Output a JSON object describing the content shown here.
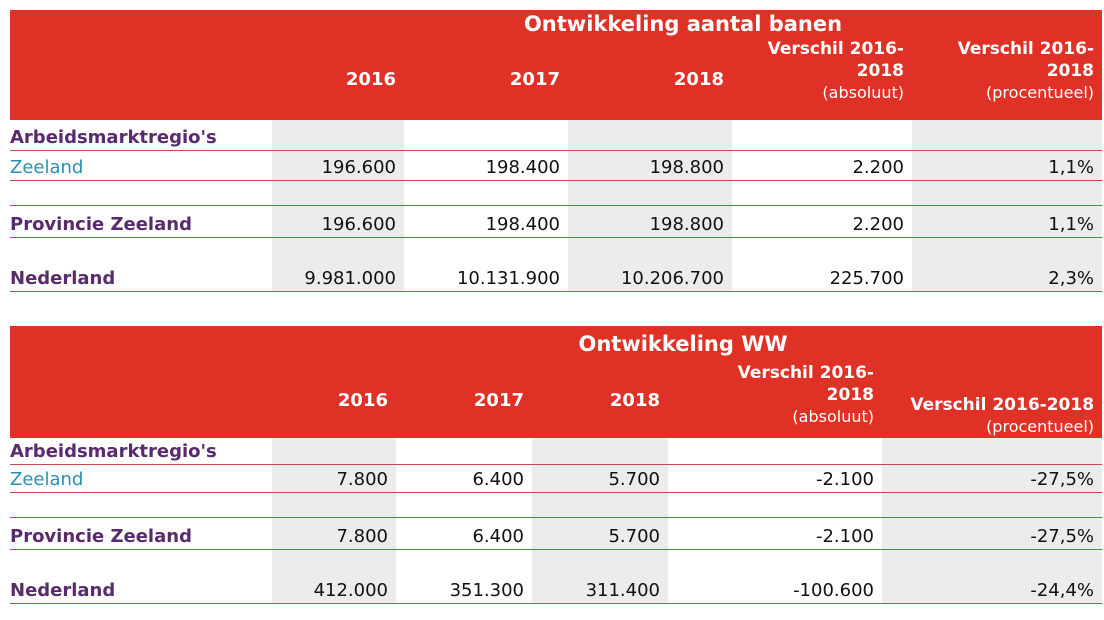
{
  "tables": [
    {
      "title": "Ontwikkeling aantal banen",
      "headers": {
        "y2016": "2016",
        "y2017": "2017",
        "y2018": "2018",
        "abs_line1": "Verschil 2016-",
        "abs_line2": "2018",
        "abs_line3": "(absoluut)",
        "pct_line1": "Verschil 2016-",
        "pct_line2": "2018",
        "pct_line3": "(procentueel)"
      },
      "section_label": "Arbeidsmarktregio's",
      "rows": [
        {
          "label": "Zeeland",
          "v2016": "196.600",
          "v2017": "198.400",
          "v2018": "198.800",
          "abs": "2.200",
          "pct": "1,1%"
        },
        {
          "label": "Provincie Zeeland",
          "v2016": "196.600",
          "v2017": "198.400",
          "v2018": "198.800",
          "abs": "2.200",
          "pct": "1,1%"
        },
        {
          "label": "Nederland",
          "v2016": "9.981.000",
          "v2017": "10.131.900",
          "v2018": "10.206.700",
          "abs": "225.700",
          "pct": "2,3%"
        }
      ]
    },
    {
      "title": "Ontwikkeling WW",
      "headers": {
        "y2016": "2016",
        "y2017": "2017",
        "y2018": "2018",
        "abs_line1": "Verschil 2016-",
        "abs_line2": "2018",
        "abs_line3": "(absoluut)",
        "pct_line1": "",
        "pct_line2": "Verschil 2016-2018",
        "pct_line3": "(procentueel)"
      },
      "section_label": "Arbeidsmarktregio's",
      "rows": [
        {
          "label": "Zeeland",
          "v2016": "7.800",
          "v2017": "6.400",
          "v2018": "5.700",
          "abs": "-2.100",
          "pct": "-27,5%"
        },
        {
          "label": "Provincie Zeeland",
          "v2016": "7.800",
          "v2017": "6.400",
          "v2018": "5.700",
          "abs": "-2.100",
          "pct": "-27,5%"
        },
        {
          "label": "Nederland",
          "v2016": "412.000",
          "v2017": "351.300",
          "v2018": "311.400",
          "abs": "-100.600",
          "pct": "-24,4%"
        }
      ]
    }
  ],
  "colors": {
    "header_red": "#e03127",
    "label_purple": "#5a2a6e",
    "link_blue": "#2a8fb0",
    "rule_red": "#c54a48"
  }
}
